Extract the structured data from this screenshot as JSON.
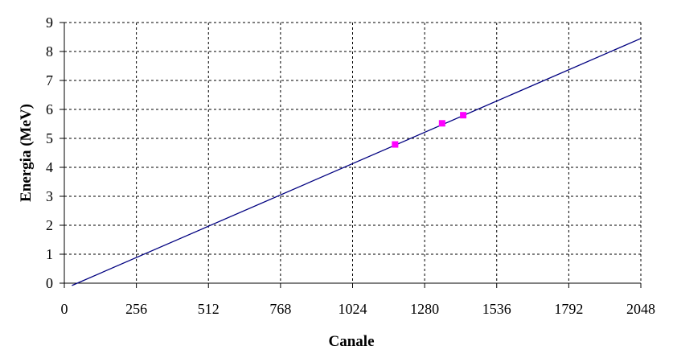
{
  "chart_data": {
    "type": "scatter",
    "title": "",
    "xlabel": "Canale",
    "ylabel": "Energia (MeV)",
    "xlim": [
      0,
      2048
    ],
    "ylim": [
      0,
      9
    ],
    "x_ticks": [
      0,
      256,
      512,
      768,
      1024,
      1280,
      1536,
      1792,
      2048
    ],
    "y_ticks": [
      0,
      1,
      2,
      3,
      4,
      5,
      6,
      7,
      8,
      9
    ],
    "grid": true,
    "legend": "none",
    "series": [
      {
        "kind": "points",
        "marker": "square",
        "color": "#ff00ff",
        "x": [
          1175,
          1342,
          1417
        ],
        "y": [
          4.79,
          5.52,
          5.8
        ]
      },
      {
        "kind": "line",
        "color": "#000080",
        "x": [
          27,
          2048
        ],
        "y": [
          -0.08,
          8.45
        ]
      }
    ]
  },
  "colors": {
    "axis": "#000000",
    "grid": "#000000",
    "fit_line": "#000080",
    "points": "#ff00ff",
    "background": "#ffffff"
  }
}
